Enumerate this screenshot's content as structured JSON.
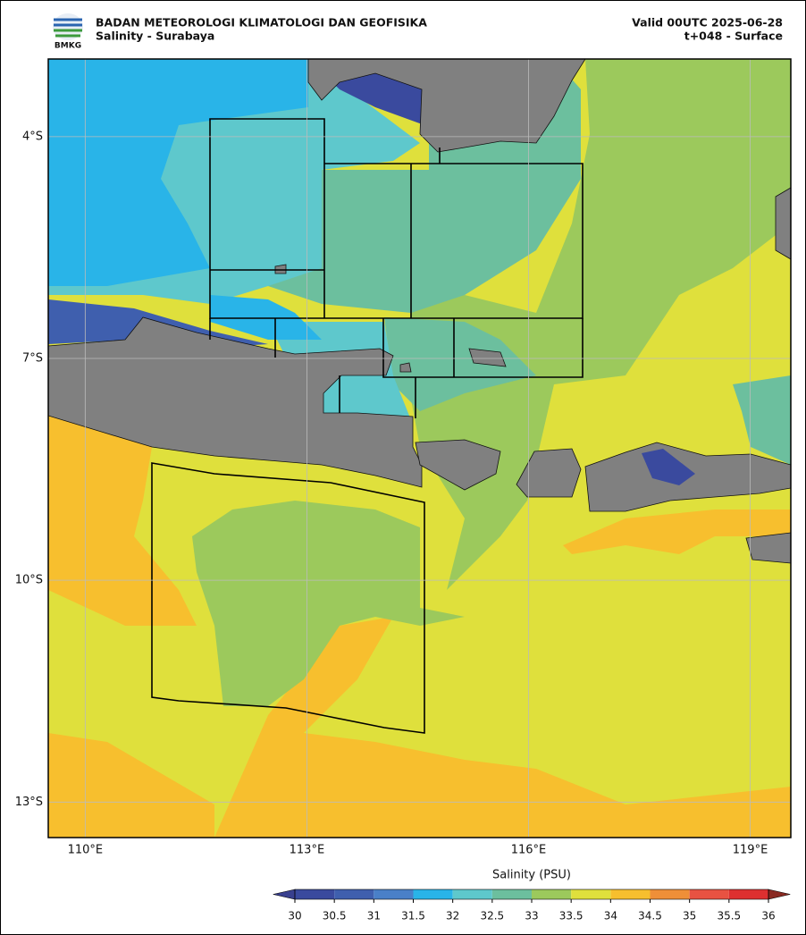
{
  "header": {
    "org": "BADAN METEOROLOGI KLIMATOLOGI DAN GEOFISIKA",
    "subtitle": "Salinity - Surabaya",
    "valid": "Valid 00UTC 2025-06-28",
    "step": "t+048 - Surface",
    "logo": "BMKG"
  },
  "map": {
    "xlim": [
      109.5,
      119.55
    ],
    "ylim": [
      -2.95,
      -13.48
    ],
    "xticks": [
      {
        "value": 110,
        "label": "110°E"
      },
      {
        "value": 113,
        "label": "113°E"
      },
      {
        "value": 116,
        "label": "116°E"
      },
      {
        "value": 119,
        "label": "119°E"
      }
    ],
    "yticks": [
      {
        "value": -4,
        "label": "4°S"
      },
      {
        "value": -7,
        "label": "7°S"
      },
      {
        "value": -10,
        "label": "10°S"
      },
      {
        "value": -13,
        "label": "13°S"
      }
    ],
    "grid": true
  },
  "colorbar": {
    "label": "Salinity (PSU)",
    "ticks": [
      30,
      30.5,
      31,
      31.5,
      32,
      32.5,
      33,
      33.5,
      34,
      34.5,
      35,
      35.5,
      36
    ],
    "colors": [
      "#3a4a9e",
      "#3f5fae",
      "#4a80c8",
      "#29b4e8",
      "#5ec8cc",
      "#6cbf9e",
      "#9cc95c",
      "#dfe03c",
      "#f7bf2e",
      "#ef8f38",
      "#e85242",
      "#de3030"
    ],
    "under_color": "#39408f",
    "over_color": "#8a2a22"
  }
}
